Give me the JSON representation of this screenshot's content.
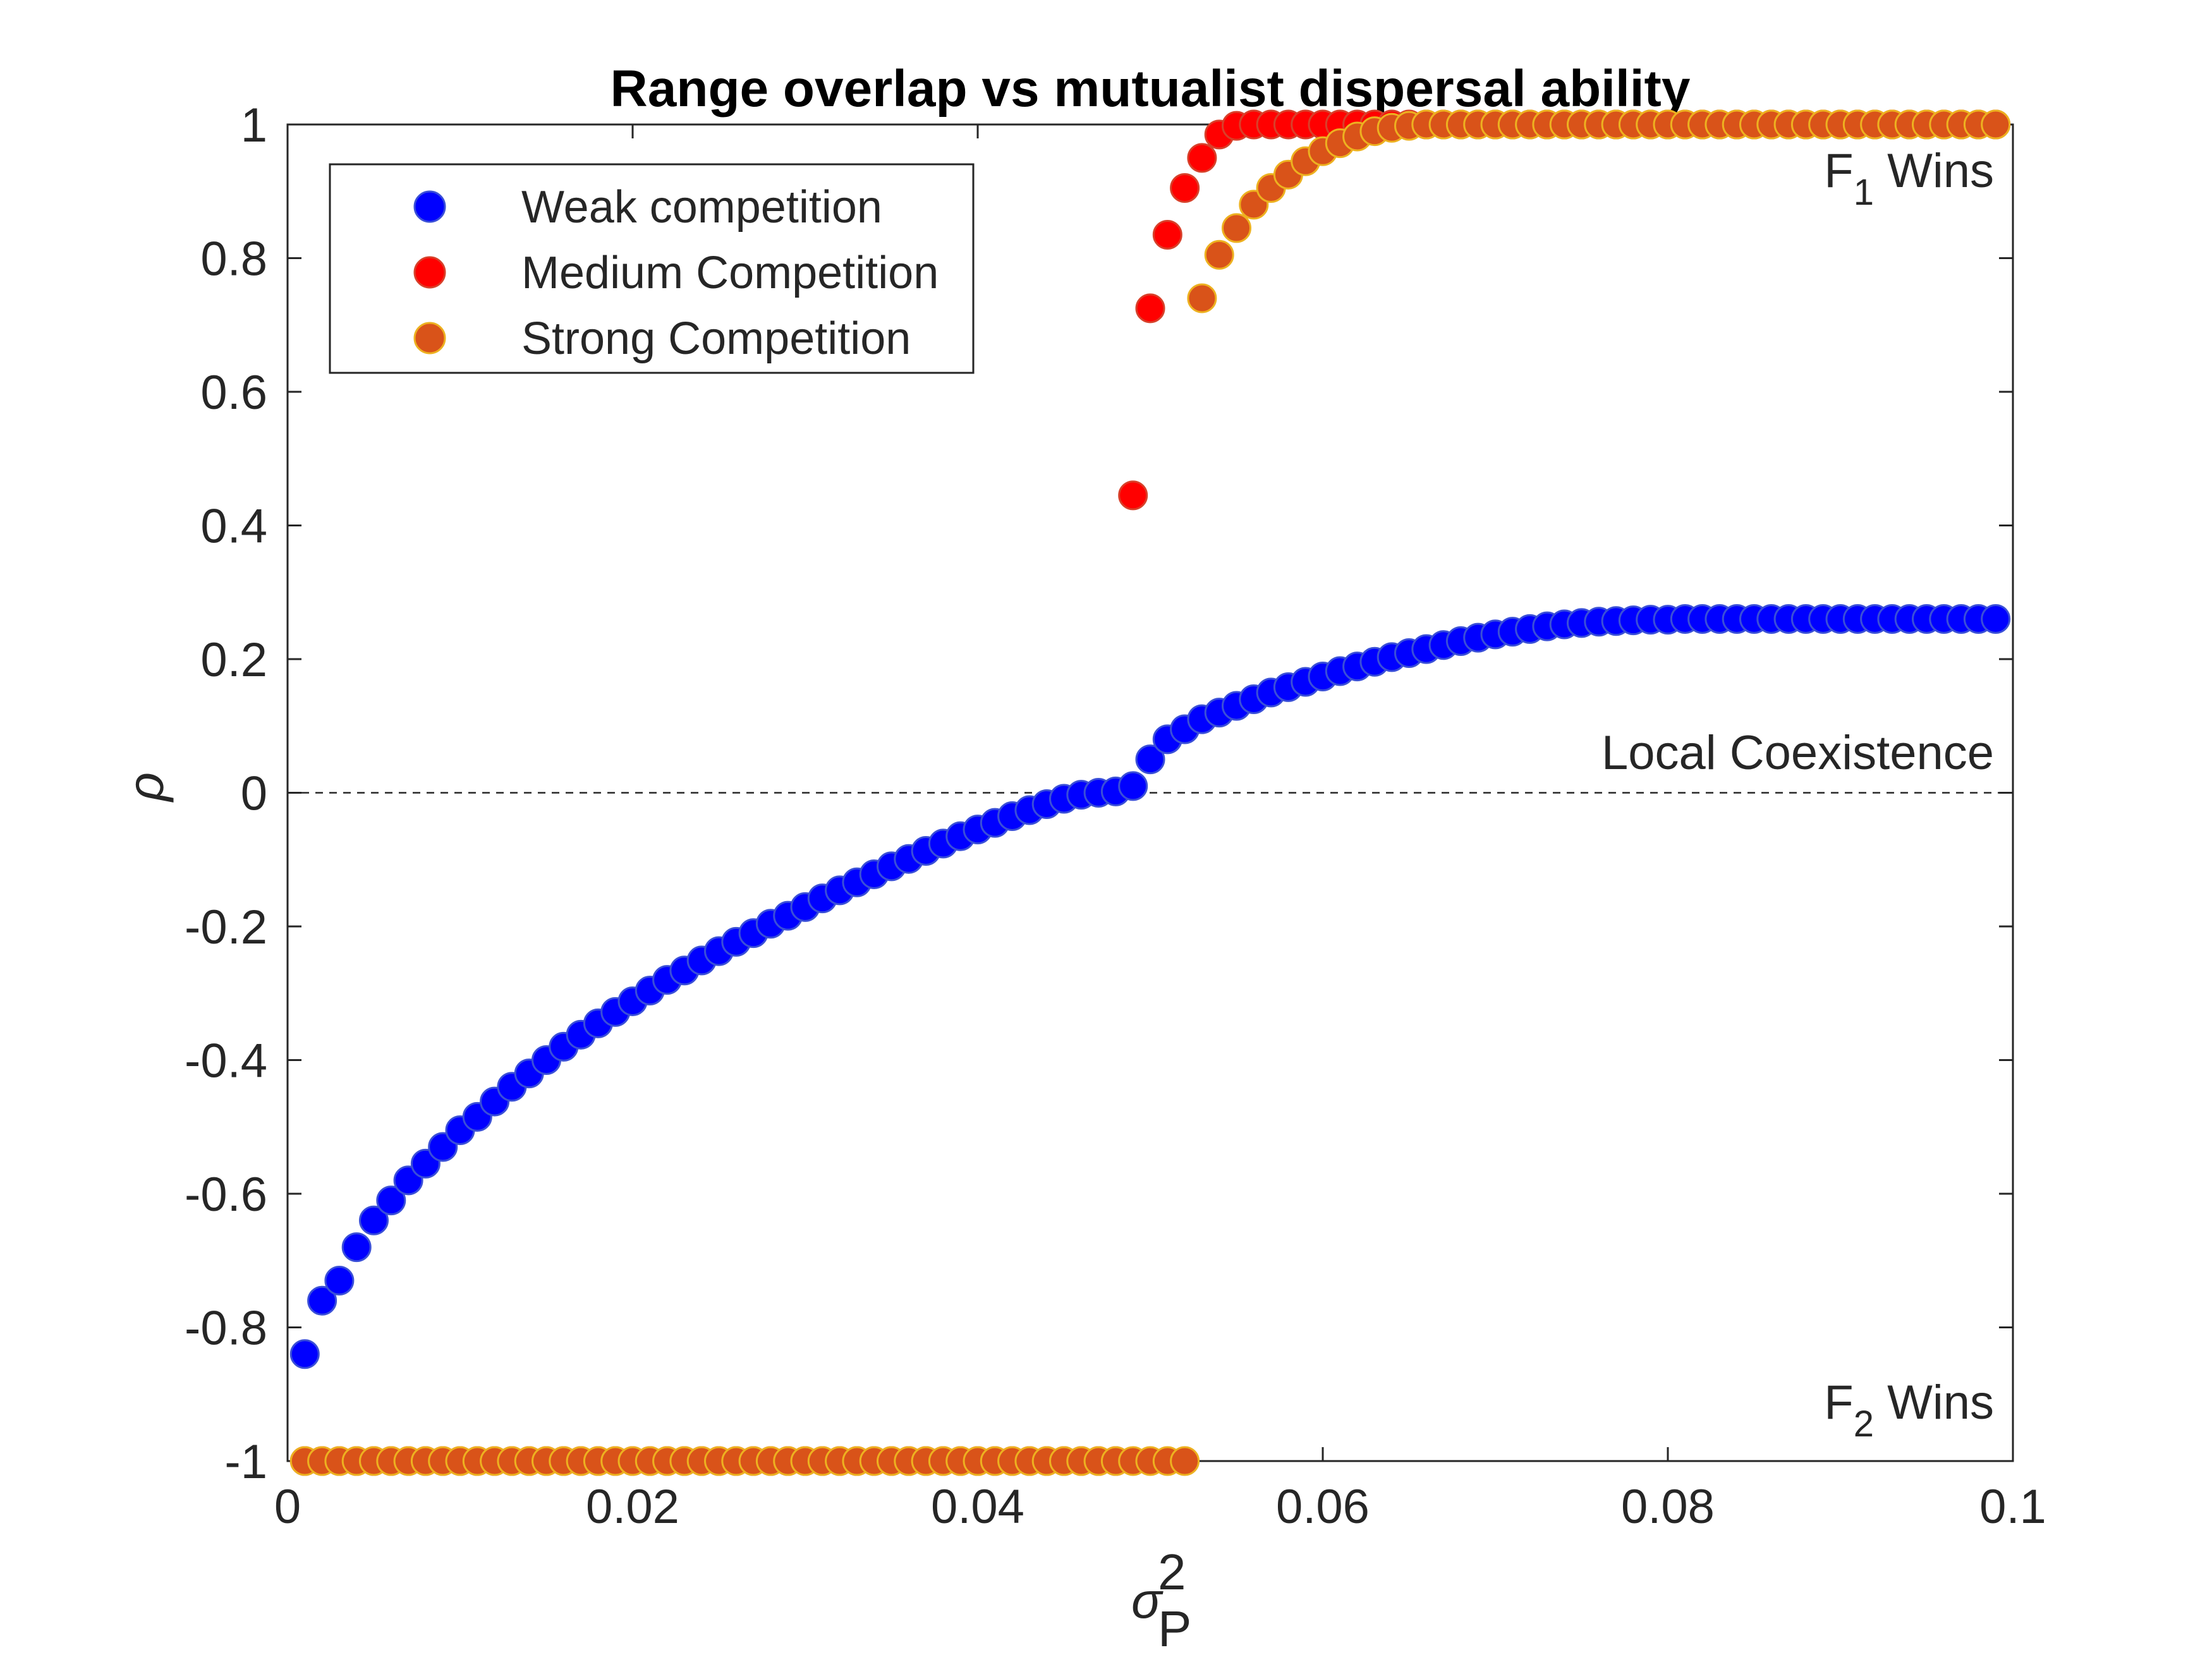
{
  "chart_data": {
    "type": "scatter",
    "title": "Range overlap vs mutualist dispersal ability",
    "xlabel": "σ_P^2",
    "xlabel_base": "σ",
    "xlabel_sub": "P",
    "xlabel_sup": "2",
    "ylabel": "ρ",
    "xlim": [
      0,
      0.1
    ],
    "ylim": [
      -1,
      1
    ],
    "xticks": [
      0,
      0.02,
      0.04,
      0.06,
      0.08,
      0.1
    ],
    "xtick_labels": [
      "0",
      "0.02",
      "0.04",
      "0.06",
      "0.08",
      "0.1"
    ],
    "yticks": [
      -1,
      -0.8,
      -0.6,
      -0.4,
      -0.2,
      0,
      0.2,
      0.4,
      0.6,
      0.8,
      1
    ],
    "ytick_labels": [
      "-1",
      "-0.8",
      "-0.6",
      "-0.4",
      "-0.2",
      "0",
      "0.2",
      "0.4",
      "0.6",
      "0.8",
      "1"
    ],
    "grid": false,
    "legend_position": "top-left",
    "reference_line": {
      "y": 0,
      "style": "dashed"
    },
    "annotations": {
      "f1_wins": {
        "base": "F",
        "sub": "1",
        "rest": " Wins"
      },
      "f2_wins": {
        "base": "F",
        "sub": "2",
        "rest": " Wins"
      },
      "local_coexistence": "Local Coexistence"
    },
    "series": [
      {
        "name": "Weak competition",
        "color": "#0000ff",
        "edge": "#3a4fd8",
        "x": [
          0.001,
          0.002,
          0.003,
          0.004,
          0.005,
          0.006,
          0.007,
          0.008,
          0.009,
          0.01,
          0.011,
          0.012,
          0.013,
          0.014,
          0.015,
          0.016,
          0.017,
          0.018,
          0.019,
          0.02,
          0.021,
          0.022,
          0.023,
          0.024,
          0.025,
          0.026,
          0.027,
          0.028,
          0.029,
          0.03,
          0.031,
          0.032,
          0.033,
          0.034,
          0.035,
          0.036,
          0.037,
          0.038,
          0.039,
          0.04,
          0.041,
          0.042,
          0.043,
          0.044,
          0.045,
          0.046,
          0.047,
          0.048,
          0.049,
          0.05,
          0.051,
          0.052,
          0.053,
          0.054,
          0.055,
          0.056,
          0.057,
          0.058,
          0.059,
          0.06,
          0.061,
          0.062,
          0.063,
          0.064,
          0.065,
          0.066,
          0.067,
          0.068,
          0.069,
          0.07,
          0.071,
          0.072,
          0.073,
          0.074,
          0.075,
          0.076,
          0.077,
          0.078,
          0.079,
          0.08,
          0.081,
          0.082,
          0.083,
          0.084,
          0.085,
          0.086,
          0.087,
          0.088,
          0.089,
          0.09,
          0.091,
          0.092,
          0.093,
          0.094,
          0.095,
          0.096,
          0.097,
          0.098,
          0.099
        ],
        "y": [
          -0.84,
          -0.76,
          -0.73,
          -0.68,
          -0.64,
          -0.61,
          -0.58,
          -0.555,
          -0.53,
          -0.505,
          -0.485,
          -0.462,
          -0.44,
          -0.42,
          -0.4,
          -0.38,
          -0.362,
          -0.345,
          -0.328,
          -0.312,
          -0.296,
          -0.28,
          -0.266,
          -0.251,
          -0.237,
          -0.223,
          -0.21,
          -0.196,
          -0.184,
          -0.171,
          -0.158,
          -0.146,
          -0.134,
          -0.122,
          -0.11,
          -0.099,
          -0.087,
          -0.076,
          -0.065,
          -0.055,
          -0.045,
          -0.035,
          -0.026,
          -0.017,
          -0.009,
          -0.003,
          0.0,
          0.002,
          0.01,
          0.05,
          0.08,
          0.095,
          0.11,
          0.12,
          0.13,
          0.14,
          0.15,
          0.158,
          0.166,
          0.174,
          0.182,
          0.189,
          0.196,
          0.203,
          0.209,
          0.215,
          0.221,
          0.227,
          0.232,
          0.237,
          0.241,
          0.245,
          0.249,
          0.252,
          0.254,
          0.256,
          0.257,
          0.258,
          0.259,
          0.259,
          0.26,
          0.26,
          0.26,
          0.26,
          0.26,
          0.26,
          0.26,
          0.26,
          0.26,
          0.26,
          0.26,
          0.26,
          0.26,
          0.26,
          0.26,
          0.26,
          0.26,
          0.26,
          0.26
        ]
      },
      {
        "name": "Medium Competition",
        "color": "#ff0000",
        "edge": "#d8402a",
        "x": [
          0.001,
          0.002,
          0.003,
          0.004,
          0.005,
          0.006,
          0.007,
          0.008,
          0.009,
          0.01,
          0.011,
          0.012,
          0.013,
          0.014,
          0.015,
          0.016,
          0.017,
          0.018,
          0.019,
          0.02,
          0.021,
          0.022,
          0.023,
          0.024,
          0.025,
          0.026,
          0.027,
          0.028,
          0.029,
          0.03,
          0.031,
          0.032,
          0.033,
          0.034,
          0.035,
          0.036,
          0.037,
          0.038,
          0.039,
          0.04,
          0.041,
          0.042,
          0.043,
          0.044,
          0.045,
          0.046,
          0.047,
          0.048,
          0.049,
          0.05,
          0.051,
          0.052,
          0.053,
          0.054,
          0.055,
          0.056,
          0.057,
          0.058,
          0.059,
          0.06,
          0.061,
          0.062,
          0.063,
          0.064,
          0.065,
          0.066,
          0.067,
          0.068,
          0.069,
          0.07,
          0.071,
          0.072,
          0.073,
          0.074,
          0.075,
          0.076,
          0.077,
          0.078,
          0.079,
          0.08,
          0.081,
          0.082,
          0.083,
          0.084,
          0.085,
          0.086,
          0.087,
          0.088,
          0.089,
          0.09,
          0.091,
          0.092,
          0.093,
          0.094,
          0.095,
          0.096,
          0.097,
          0.098,
          0.099
        ],
        "y": [
          -1,
          -1,
          -1,
          -1,
          -1,
          -1,
          -1,
          -1,
          -1,
          -1,
          -1,
          -1,
          -1,
          -1,
          -1,
          -1,
          -1,
          -1,
          -1,
          -1,
          -1,
          -1,
          -1,
          -1,
          -1,
          -1,
          -1,
          -1,
          -1,
          -1,
          -1,
          -1,
          -1,
          -1,
          -1,
          -1,
          -1,
          -1,
          -1,
          -1,
          -1,
          -1,
          -1,
          -1,
          -1,
          -1,
          -1,
          -1,
          0.445,
          0.725,
          0.835,
          0.905,
          0.95,
          0.985,
          0.998,
          1,
          1,
          1,
          1,
          1,
          1,
          1,
          1,
          1,
          1,
          1,
          1,
          1,
          1,
          1,
          1,
          1,
          1,
          1,
          1,
          1,
          1,
          1,
          1,
          1,
          1,
          1,
          1,
          1,
          1,
          1,
          1,
          1,
          1,
          1,
          1,
          1,
          1,
          1,
          1,
          1,
          1,
          1,
          1
        ]
      },
      {
        "name": "Strong Competition",
        "color": "#d95319",
        "edge": "#edb120",
        "x": [
          0.001,
          0.002,
          0.003,
          0.004,
          0.005,
          0.006,
          0.007,
          0.008,
          0.009,
          0.01,
          0.011,
          0.012,
          0.013,
          0.014,
          0.015,
          0.016,
          0.017,
          0.018,
          0.019,
          0.02,
          0.021,
          0.022,
          0.023,
          0.024,
          0.025,
          0.026,
          0.027,
          0.028,
          0.029,
          0.03,
          0.031,
          0.032,
          0.033,
          0.034,
          0.035,
          0.036,
          0.037,
          0.038,
          0.039,
          0.04,
          0.041,
          0.042,
          0.043,
          0.044,
          0.045,
          0.046,
          0.047,
          0.048,
          0.049,
          0.05,
          0.051,
          0.052,
          0.053,
          0.054,
          0.055,
          0.056,
          0.057,
          0.058,
          0.059,
          0.06,
          0.061,
          0.062,
          0.063,
          0.064,
          0.065,
          0.066,
          0.067,
          0.068,
          0.069,
          0.07,
          0.071,
          0.072,
          0.073,
          0.074,
          0.075,
          0.076,
          0.077,
          0.078,
          0.079,
          0.08,
          0.081,
          0.082,
          0.083,
          0.084,
          0.085,
          0.086,
          0.087,
          0.088,
          0.089,
          0.09,
          0.091,
          0.092,
          0.093,
          0.094,
          0.095,
          0.096,
          0.097,
          0.098,
          0.099
        ],
        "y": [
          -1,
          -1,
          -1,
          -1,
          -1,
          -1,
          -1,
          -1,
          -1,
          -1,
          -1,
          -1,
          -1,
          -1,
          -1,
          -1,
          -1,
          -1,
          -1,
          -1,
          -1,
          -1,
          -1,
          -1,
          -1,
          -1,
          -1,
          -1,
          -1,
          -1,
          -1,
          -1,
          -1,
          -1,
          -1,
          -1,
          -1,
          -1,
          -1,
          -1,
          -1,
          -1,
          -1,
          -1,
          -1,
          -1,
          -1,
          -1,
          -1,
          -1,
          -1,
          -1,
          0.74,
          0.805,
          0.845,
          0.88,
          0.905,
          0.925,
          0.945,
          0.96,
          0.972,
          0.982,
          0.99,
          0.995,
          0.998,
          1,
          1,
          1,
          1,
          1,
          1,
          1,
          1,
          1,
          1,
          1,
          1,
          1,
          1,
          1,
          1,
          1,
          1,
          1,
          1,
          1,
          1,
          1,
          1,
          1,
          1,
          1,
          1,
          1,
          1,
          1,
          1,
          1,
          1
        ]
      }
    ]
  }
}
